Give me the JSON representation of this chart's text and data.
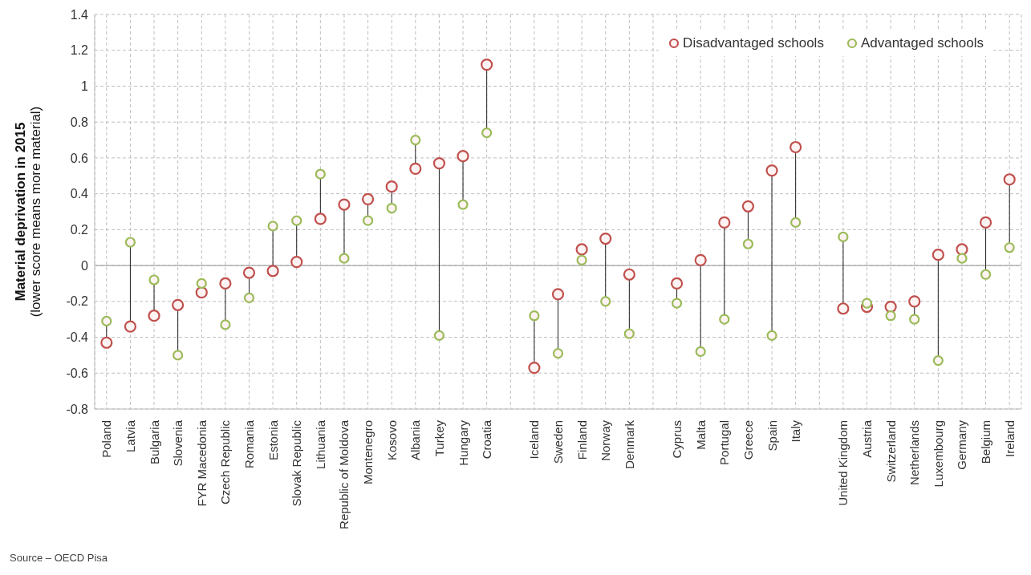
{
  "chart_data": {
    "type": "scatter",
    "ylabel": "Material deprivation in 2015\n(lower score means more material)",
    "categories": [
      "Poland",
      "Latvia",
      "Bulgaria",
      "Slovenia",
      "FYR Macedonia",
      "Czech Republic",
      "Romania",
      "Estonia",
      "Slovak Republic",
      "Lithuania",
      "Republic of Moldova",
      "Montenegro",
      "Kosovo",
      "Albania",
      "Turkey",
      "Hungary",
      "Croatia",
      null,
      "Iceland",
      "Sweden",
      "Finland",
      "Norway",
      "Denmark",
      null,
      "Cyprus",
      "Malta",
      "Portugal",
      "Greece",
      "Spain",
      "Italy",
      null,
      "United Kingdom",
      "Austria",
      "Switzerland",
      "Netherlands",
      "Luxembourg",
      "Germany",
      "Belgium",
      "Ireland"
    ],
    "series": [
      {
        "name": "Disadvantaged schools",
        "color": "#c0504d",
        "values": [
          -0.43,
          -0.34,
          -0.28,
          -0.22,
          -0.15,
          -0.1,
          -0.04,
          -0.03,
          0.02,
          0.26,
          0.34,
          0.37,
          0.44,
          0.54,
          0.57,
          0.61,
          1.12,
          null,
          -0.57,
          -0.16,
          0.09,
          0.15,
          -0.05,
          null,
          -0.1,
          0.03,
          0.24,
          0.33,
          0.53,
          0.66,
          null,
          -0.24,
          -0.23,
          -0.23,
          -0.2,
          0.06,
          0.09,
          0.24,
          0.48
        ]
      },
      {
        "name": "Advantaged schools",
        "color": "#9bbb59",
        "values": [
          -0.31,
          0.13,
          -0.08,
          -0.5,
          -0.1,
          -0.33,
          -0.18,
          0.22,
          0.25,
          0.51,
          0.04,
          0.25,
          0.32,
          0.7,
          -0.39,
          0.34,
          0.74,
          null,
          -0.28,
          -0.49,
          0.03,
          -0.2,
          -0.38,
          null,
          -0.21,
          -0.48,
          -0.3,
          0.12,
          -0.39,
          0.24,
          null,
          0.16,
          -0.21,
          -0.28,
          -0.3,
          -0.53,
          0.04,
          -0.05,
          0.1
        ]
      }
    ],
    "ylim": [
      -0.8,
      1.4
    ],
    "yticks": [
      -0.8,
      -0.6,
      -0.4,
      -0.2,
      0,
      0.2,
      0.4,
      0.6,
      0.8,
      1,
      1.2,
      1.4
    ],
    "grid": true,
    "legend": "top right",
    "marker": "circle",
    "ref_lines": [
      {
        "axis": "y",
        "value": 0,
        "color": "#a6a6a6"
      }
    ],
    "annotations": [
      "Source – OECD Pisa"
    ]
  }
}
